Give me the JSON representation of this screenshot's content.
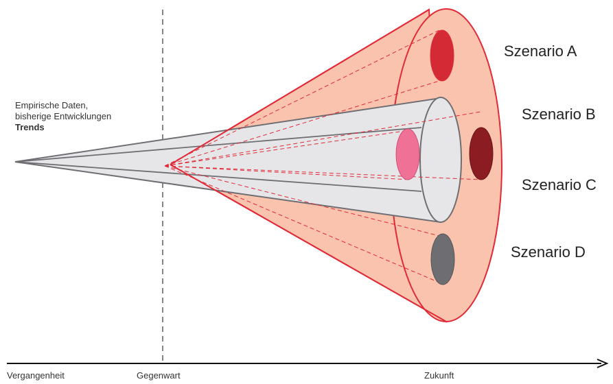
{
  "colors": {
    "cone_fill": "#f9c3ad",
    "cone_stroke": "#e02a37",
    "trend_fill": "#e6e6e8",
    "trend_stroke": "#6e6e73",
    "scenario_a": "#d42a35",
    "scenario_b": "#8b1d22",
    "scenario_c_pink": "#ef7296",
    "scenario_d": "#6d6d72"
  },
  "empirie": {
    "line1": "Empirische Daten,",
    "line2": "bisherige Entwicklungen",
    "line3": "Trends"
  },
  "scenarios": [
    {
      "label": "Szenario A"
    },
    {
      "label": "Szenario B"
    },
    {
      "label": "Szenario C"
    },
    {
      "label": "Szenario D"
    }
  ],
  "axis": {
    "past": "Vergangenheit",
    "present": "Gegenwart",
    "future": "Zukunft"
  }
}
